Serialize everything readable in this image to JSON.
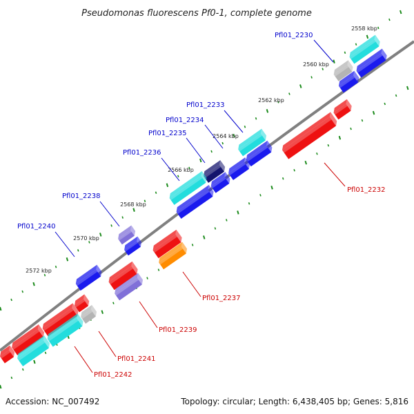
{
  "title": "Pseudomonas fluorescens Pf0-1, complete genome",
  "footer": {
    "accession": "Accession: NC_007492",
    "summary": "Topology: circular; Length: 6,438,405 bp; Genes: 5,816"
  },
  "ticks": [
    "2558 kbp",
    "2560 kbp",
    "2562 kbp",
    "2564 kbp",
    "2566 kbp",
    "2568 kbp",
    "2570 kbp",
    "2572 kbp"
  ],
  "genes": [
    {
      "id": "Pfl01_2230",
      "strand": "forward",
      "color": "#0000cc"
    },
    {
      "id": "Pfl01_2232",
      "strand": "reverse",
      "color": "#cc0000"
    },
    {
      "id": "Pfl01_2233",
      "strand": "forward",
      "color": "#0000cc"
    },
    {
      "id": "Pfl01_2234",
      "strand": "forward",
      "color": "#0000cc"
    },
    {
      "id": "Pfl01_2235",
      "strand": "forward",
      "color": "#0000cc"
    },
    {
      "id": "Pfl01_2236",
      "strand": "forward",
      "color": "#0000cc"
    },
    {
      "id": "Pfl01_2237",
      "strand": "reverse",
      "color": "#cc0000"
    },
    {
      "id": "Pfl01_2238",
      "strand": "forward",
      "color": "#0000cc"
    },
    {
      "id": "Pfl01_2239",
      "strand": "reverse",
      "color": "#cc0000"
    },
    {
      "id": "Pfl01_2240",
      "strand": "forward",
      "color": "#0000cc"
    },
    {
      "id": "Pfl01_2241",
      "strand": "reverse",
      "color": "#cc0000"
    },
    {
      "id": "Pfl01_2242",
      "strand": "reverse",
      "color": "#cc0000"
    }
  ],
  "colors": {
    "blue": "#1a1aee",
    "navy": "#14146e",
    "cyan": "#22dddd",
    "gray": "#b4b4b4",
    "red": "#ee1111",
    "orange": "#ff8c00",
    "lavender": "#8070d8",
    "backbone": "#808080",
    "ruler": "#1a8a1a"
  }
}
